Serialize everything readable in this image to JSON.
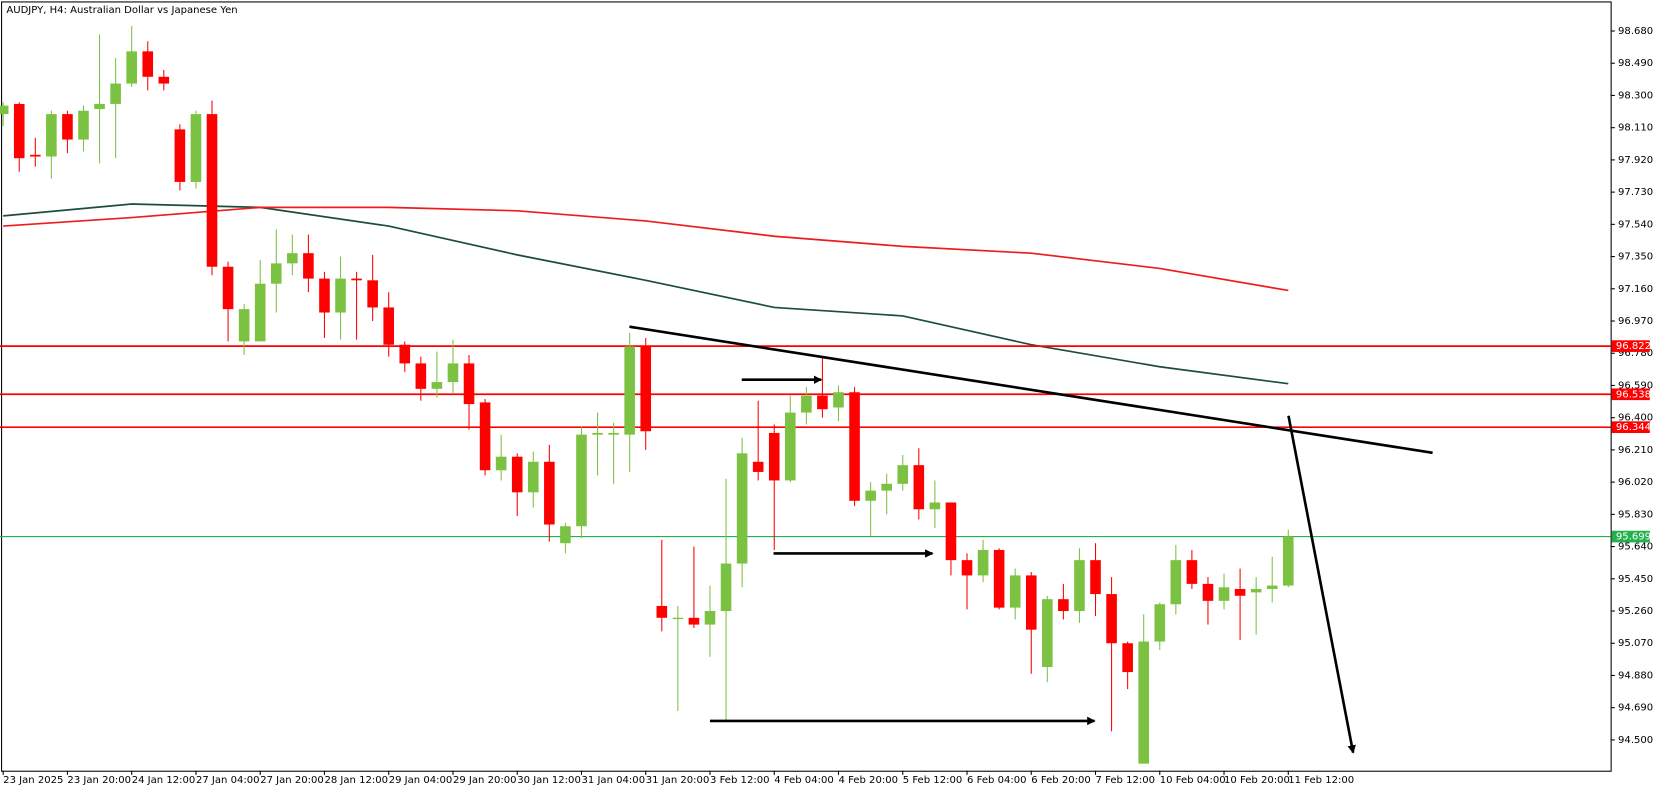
{
  "chart_data": {
    "type": "candlestick",
    "title": "AUDJPY, H4:  Australian Dollar vs Japanese Yen",
    "up_color": "#7cc242",
    "down_color": "#ff0000",
    "ylim": [
      94.331,
      98.842
    ],
    "yticks": [
      {
        "value": 98.68,
        "label": "98.680"
      },
      {
        "value": 98.49,
        "label": "98.490"
      },
      {
        "value": 98.3,
        "label": "98.300"
      },
      {
        "value": 98.11,
        "label": "98.110"
      },
      {
        "value": 97.92,
        "label": "97.920"
      },
      {
        "value": 97.73,
        "label": "97.730"
      },
      {
        "value": 97.54,
        "label": "97.540"
      },
      {
        "value": 97.35,
        "label": "97.350"
      },
      {
        "value": 97.16,
        "label": "97.160"
      },
      {
        "value": 96.97,
        "label": "96.970"
      },
      {
        "value": 96.78,
        "label": "96.780"
      },
      {
        "value": 96.59,
        "label": "96.590"
      },
      {
        "value": 96.4,
        "label": "96.400"
      },
      {
        "value": 96.21,
        "label": "96.210"
      },
      {
        "value": 96.02,
        "label": "96.020"
      },
      {
        "value": 95.83,
        "label": "95.830"
      },
      {
        "value": 95.64,
        "label": "95.640"
      },
      {
        "value": 95.45,
        "label": "95.450"
      },
      {
        "value": 95.26,
        "label": "95.260"
      },
      {
        "value": 95.07,
        "label": "95.070"
      },
      {
        "value": 94.88,
        "label": "94.880"
      },
      {
        "value": 94.69,
        "label": "94.690"
      },
      {
        "value": 94.5,
        "label": "94.500"
      }
    ],
    "categories": [
      "23 Jan 2025",
      null,
      null,
      null,
      "23 Jan 20:00",
      null,
      null,
      null,
      "24 Jan 12:00",
      null,
      null,
      null,
      "27 Jan 04:00",
      null,
      null,
      null,
      "27 Jan 20:00",
      null,
      null,
      null,
      "28 Jan 12:00",
      null,
      null,
      null,
      "29 Jan 04:00",
      null,
      null,
      null,
      "29 Jan 20:00",
      null,
      null,
      null,
      "30 Jan 12:00",
      null,
      null,
      null,
      "31 Jan 04:00",
      null,
      null,
      null,
      "31 Jan 20:00",
      null,
      null,
      null,
      "3 Feb 12:00",
      null,
      null,
      null,
      "4 Feb 04:00",
      null,
      null,
      null,
      "4 Feb 20:00",
      null,
      null,
      null,
      "5 Feb 12:00",
      null,
      null,
      null,
      "6 Feb 04:00",
      null,
      null,
      null,
      "6 Feb 20:00",
      null,
      null,
      null,
      "7 Feb 12:00",
      null,
      null,
      null,
      "10 Feb 04:00",
      null,
      null,
      null,
      "10 Feb 20:00",
      null,
      null,
      null,
      "11 Feb 12:00"
    ],
    "open": [
      98.19,
      98.25,
      97.95,
      97.94,
      98.19,
      98.04,
      98.22,
      98.25,
      98.37,
      98.56,
      98.41,
      98.1,
      97.79,
      98.19,
      97.29,
      96.85,
      96.85,
      97.19,
      97.31,
      97.37,
      97.22,
      97.02,
      97.22,
      97.21,
      97.05,
      96.83,
      96.72,
      96.57,
      96.61,
      96.72,
      96.49,
      96.09,
      96.17,
      95.96,
      96.14,
      95.66,
      95.76,
      96.3,
      96.3,
      96.3,
      96.82,
      95.29,
      95.22,
      95.22,
      95.18,
      95.26,
      95.54,
      96.14,
      96.31,
      96.03,
      96.43,
      96.53,
      96.46,
      96.55,
      95.91,
      95.97,
      96.01,
      96.12,
      95.86,
      95.9,
      95.56,
      95.47,
      95.62,
      95.28,
      95.47,
      94.93,
      95.33,
      95.26,
      95.56,
      95.36,
      95.07,
      94.36,
      95.08,
      95.3,
      95.56,
      95.42,
      95.32,
      95.39,
      95.37,
      95.39,
      95.41
    ],
    "high": [
      98.26,
      98.26,
      98.05,
      98.21,
      98.21,
      98.24,
      98.66,
      98.52,
      98.71,
      98.62,
      98.45,
      98.13,
      98.21,
      98.27,
      97.32,
      97.07,
      97.33,
      97.51,
      97.48,
      97.48,
      97.26,
      97.35,
      97.26,
      97.36,
      97.14,
      96.85,
      96.76,
      96.79,
      96.86,
      96.77,
      96.51,
      96.3,
      96.19,
      96.2,
      96.24,
      95.78,
      96.35,
      96.43,
      96.37,
      96.9,
      96.87,
      95.68,
      95.29,
      95.64,
      95.41,
      96.04,
      96.28,
      96.5,
      96.36,
      96.53,
      96.58,
      96.75,
      96.59,
      96.58,
      96.02,
      96.07,
      96.18,
      96.22,
      96.03,
      95.9,
      95.6,
      95.68,
      95.63,
      95.51,
      95.49,
      95.35,
      95.42,
      95.63,
      95.66,
      95.46,
      95.08,
      95.24,
      95.31,
      95.65,
      95.62,
      95.46,
      95.48,
      95.51,
      95.46,
      95.58,
      95.74
    ],
    "low": [
      98.12,
      97.85,
      97.88,
      97.81,
      97.96,
      97.97,
      97.9,
      97.93,
      98.35,
      98.33,
      98.33,
      97.74,
      97.75,
      97.24,
      96.85,
      96.77,
      96.85,
      97.02,
      97.24,
      97.14,
      96.87,
      96.86,
      96.86,
      96.97,
      96.76,
      96.67,
      96.5,
      96.52,
      96.54,
      96.33,
      96.06,
      96.03,
      95.82,
      95.87,
      95.67,
      95.6,
      95.69,
      96.06,
      96.01,
      96.08,
      96.21,
      95.14,
      94.67,
      95.16,
      94.99,
      94.61,
      95.4,
      96.03,
      95.62,
      96.02,
      96.36,
      96.4,
      96.38,
      95.88,
      95.7,
      95.83,
      95.97,
      95.8,
      95.75,
      95.47,
      95.27,
      95.43,
      95.27,
      95.21,
      94.89,
      94.84,
      95.21,
      95.19,
      95.23,
      94.55,
      94.8,
      94.36,
      95.03,
      95.24,
      95.39,
      95.18,
      95.27,
      95.09,
      95.12,
      95.31,
      95.4
    ],
    "close": [
      98.24,
      97.93,
      97.94,
      98.19,
      98.04,
      98.21,
      98.25,
      98.37,
      98.56,
      98.41,
      98.37,
      97.79,
      98.19,
      97.29,
      97.04,
      97.04,
      97.19,
      97.31,
      97.37,
      97.22,
      97.02,
      97.22,
      97.21,
      97.05,
      96.83,
      96.72,
      96.57,
      96.61,
      96.72,
      96.48,
      96.09,
      96.17,
      95.96,
      96.14,
      95.77,
      95.76,
      96.3,
      96.31,
      96.31,
      96.82,
      96.32,
      95.22,
      95.22,
      95.18,
      95.26,
      95.54,
      96.19,
      96.08,
      96.03,
      96.43,
      96.53,
      96.45,
      96.55,
      95.91,
      95.97,
      96.01,
      96.12,
      95.86,
      95.9,
      95.56,
      95.47,
      95.62,
      95.28,
      95.47,
      95.15,
      95.33,
      95.26,
      95.56,
      95.36,
      95.07,
      94.9,
      95.08,
      95.3,
      95.56,
      95.42,
      95.32,
      95.4,
      95.35,
      95.39,
      95.41,
      95.7
    ],
    "moving_averages": [
      {
        "color": "#1e4d3c",
        "x": [
          0,
          8,
          16,
          24,
          32,
          40,
          48,
          56,
          64,
          72,
          80
        ],
        "values": [
          97.59,
          97.66,
          97.64,
          97.53,
          97.36,
          97.21,
          97.05,
          97.0,
          96.83,
          96.7,
          96.6
        ]
      },
      {
        "color": "#ee1c1c",
        "x": [
          0,
          8,
          16,
          24,
          32,
          40,
          48,
          56,
          64,
          72,
          80
        ],
        "values": [
          97.53,
          97.58,
          97.64,
          97.64,
          97.62,
          97.56,
          97.47,
          97.41,
          97.37,
          97.28,
          97.15
        ]
      }
    ],
    "hlines": [
      {
        "value": 96.822,
        "label": "96.822",
        "color": "#ff0000"
      },
      {
        "value": 96.538,
        "label": "96.538",
        "color": "#ff0000"
      },
      {
        "value": 96.344,
        "label": "96.344",
        "color": "#ff0000"
      },
      {
        "value": 95.699,
        "label": "95.699",
        "color": "#22b14c"
      }
    ]
  }
}
